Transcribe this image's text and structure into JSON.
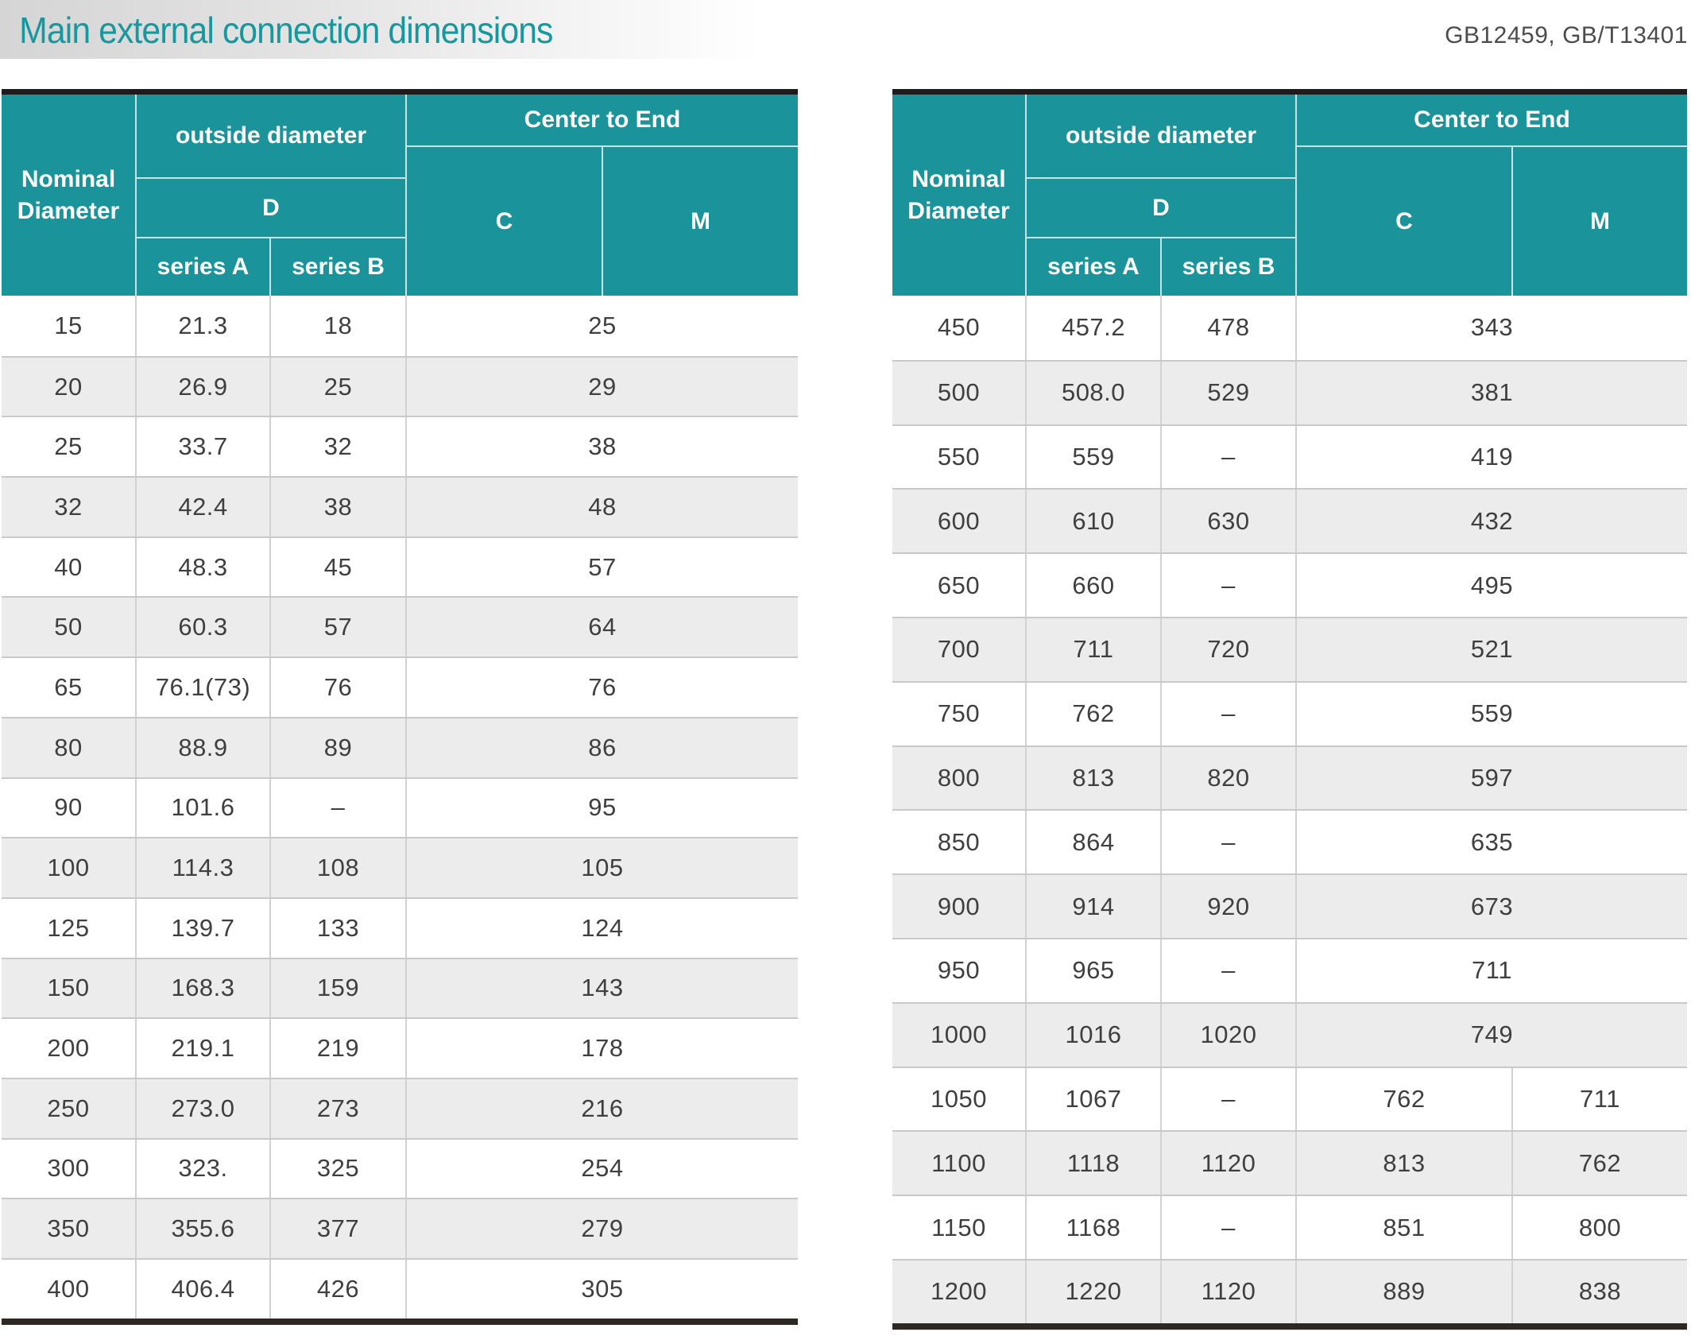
{
  "page": {
    "title": "Main external connection dimensions",
    "standards": "GB12459, GB/T13401"
  },
  "colors": {
    "accent_teal_header": "#1b939a",
    "accent_teal_title": "#17989f",
    "row_alternate": "#ececec",
    "top_rule": "#1c1c1c",
    "bottom_rule": "#2e2824"
  },
  "header": {
    "nominal": "Nominal Diameter",
    "outside_diameter": "outside diameter",
    "d": "D",
    "series_a": "series A",
    "series_b": "series B",
    "center_to_end": "Center to End",
    "c": "C",
    "m": "M"
  },
  "left_rows": [
    {
      "nd": "15",
      "a": "21.3",
      "b": "18",
      "c": "25",
      "m": null
    },
    {
      "nd": "20",
      "a": "26.9",
      "b": "25",
      "c": "29",
      "m": null
    },
    {
      "nd": "25",
      "a": "33.7",
      "b": "32",
      "c": "38",
      "m": null
    },
    {
      "nd": "32",
      "a": "42.4",
      "b": "38",
      "c": "48",
      "m": null
    },
    {
      "nd": "40",
      "a": "48.3",
      "b": "45",
      "c": "57",
      "m": null
    },
    {
      "nd": "50",
      "a": "60.3",
      "b": "57",
      "c": "64",
      "m": null
    },
    {
      "nd": "65",
      "a": "76.1(73)",
      "b": "76",
      "c": "76",
      "m": null
    },
    {
      "nd": "80",
      "a": "88.9",
      "b": "89",
      "c": "86",
      "m": null
    },
    {
      "nd": "90",
      "a": "101.6",
      "b": "–",
      "c": "95",
      "m": null
    },
    {
      "nd": "100",
      "a": "114.3",
      "b": "108",
      "c": "105",
      "m": null
    },
    {
      "nd": "125",
      "a": "139.7",
      "b": "133",
      "c": "124",
      "m": null
    },
    {
      "nd": "150",
      "a": "168.3",
      "b": "159",
      "c": "143",
      "m": null
    },
    {
      "nd": "200",
      "a": "219.1",
      "b": "219",
      "c": "178",
      "m": null
    },
    {
      "nd": "250",
      "a": "273.0",
      "b": "273",
      "c": "216",
      "m": null
    },
    {
      "nd": "300",
      "a": "323.",
      "b": "325",
      "c": "254",
      "m": null
    },
    {
      "nd": "350",
      "a": "355.6",
      "b": "377",
      "c": "279",
      "m": null
    },
    {
      "nd": "400",
      "a": "406.4",
      "b": "426",
      "c": "305",
      "m": null
    }
  ],
  "right_rows": [
    {
      "nd": "450",
      "a": "457.2",
      "b": "478",
      "c": "343",
      "m": null
    },
    {
      "nd": "500",
      "a": "508.0",
      "b": "529",
      "c": "381",
      "m": null
    },
    {
      "nd": "550",
      "a": "559",
      "b": "–",
      "c": "419",
      "m": null
    },
    {
      "nd": "600",
      "a": "610",
      "b": "630",
      "c": "432",
      "m": null
    },
    {
      "nd": "650",
      "a": "660",
      "b": "–",
      "c": "495",
      "m": null
    },
    {
      "nd": "700",
      "a": "711",
      "b": "720",
      "c": "521",
      "m": null
    },
    {
      "nd": "750",
      "a": "762",
      "b": "–",
      "c": "559",
      "m": null
    },
    {
      "nd": "800",
      "a": "813",
      "b": "820",
      "c": "597",
      "m": null
    },
    {
      "nd": "850",
      "a": "864",
      "b": "–",
      "c": "635",
      "m": null
    },
    {
      "nd": "900",
      "a": "914",
      "b": "920",
      "c": "673",
      "m": null
    },
    {
      "nd": "950",
      "a": "965",
      "b": "–",
      "c": "711",
      "m": null
    },
    {
      "nd": "1000",
      "a": "1016",
      "b": "1020",
      "c": "749",
      "m": null
    },
    {
      "nd": "1050",
      "a": "1067",
      "b": "–",
      "c": "762",
      "m": "711"
    },
    {
      "nd": "1100",
      "a": "1118",
      "b": "1120",
      "c": "813",
      "m": "762"
    },
    {
      "nd": "1150",
      "a": "1168",
      "b": "–",
      "c": "851",
      "m": "800"
    },
    {
      "nd": "1200",
      "a": "1220",
      "b": "1120",
      "c": "889",
      "m": "838"
    }
  ]
}
